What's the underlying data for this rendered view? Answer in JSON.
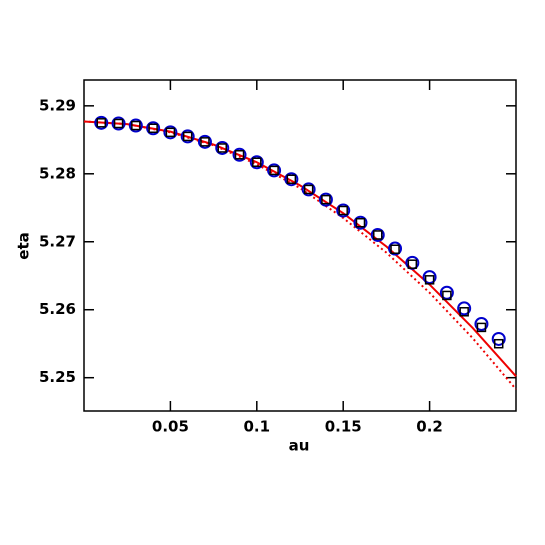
{
  "chart_data": {
    "type": "scatter",
    "xlabel": "au",
    "ylabel": "eta",
    "xlim": [
      0,
      0.25
    ],
    "ylim": [
      5.2451,
      5.2938
    ],
    "xticks": [
      0.05,
      0.1,
      0.15,
      0.2
    ],
    "yticks": [
      5.25,
      5.26,
      5.27,
      5.28,
      5.29
    ],
    "series": [
      {
        "kind": "line",
        "style": "solid",
        "color": "#ee0000",
        "x": [
          0,
          0.025,
          0.05,
          0.075,
          0.1,
          0.125,
          0.15,
          0.175,
          0.2,
          0.225,
          0.25
        ],
        "values": [
          5.2877,
          5.2873,
          5.2862,
          5.2843,
          5.2817,
          5.2783,
          5.2742,
          5.2693,
          5.2637,
          5.2573,
          5.2502
        ]
      },
      {
        "kind": "line",
        "style": "dotted",
        "color": "#ee0000",
        "x": [
          0,
          0.025,
          0.05,
          0.075,
          0.1,
          0.125,
          0.15,
          0.175,
          0.2,
          0.225,
          0.25
        ],
        "values": [
          5.2877,
          5.2873,
          5.2861,
          5.2842,
          5.2814,
          5.2779,
          5.2735,
          5.2684,
          5.2625,
          5.2558,
          5.2483
        ]
      },
      {
        "kind": "circle",
        "color": "#0000cc",
        "x": [
          0.01,
          0.02,
          0.03,
          0.04,
          0.05,
          0.06,
          0.07,
          0.08,
          0.09,
          0.1,
          0.11,
          0.12,
          0.13,
          0.14,
          0.15,
          0.16,
          0.17,
          0.18,
          0.19,
          0.2,
          0.21,
          0.22,
          0.23,
          0.24
        ],
        "values": [
          5.2875,
          5.2874,
          5.2871,
          5.2867,
          5.2861,
          5.2855,
          5.2847,
          5.2838,
          5.2828,
          5.2817,
          5.2805,
          5.2792,
          5.2777,
          5.2762,
          5.2746,
          5.2728,
          5.271,
          5.269,
          5.2669,
          5.2648,
          5.2625,
          5.2602,
          5.2579,
          5.2557
        ]
      },
      {
        "kind": "square",
        "color": "#000000",
        "x": [
          0.01,
          0.02,
          0.03,
          0.04,
          0.05,
          0.06,
          0.07,
          0.08,
          0.09,
          0.1,
          0.11,
          0.12,
          0.13,
          0.14,
          0.15,
          0.16,
          0.17,
          0.18,
          0.19,
          0.2,
          0.21,
          0.22,
          0.23,
          0.24
        ],
        "values": [
          5.2875,
          5.2874,
          5.2871,
          5.2867,
          5.2861,
          5.2855,
          5.2847,
          5.2838,
          5.2828,
          5.2817,
          5.2805,
          5.2792,
          5.2777,
          5.2762,
          5.2746,
          5.2728,
          5.271,
          5.2689,
          5.2667,
          5.2644,
          5.2621,
          5.2597,
          5.2574,
          5.255
        ]
      }
    ]
  }
}
